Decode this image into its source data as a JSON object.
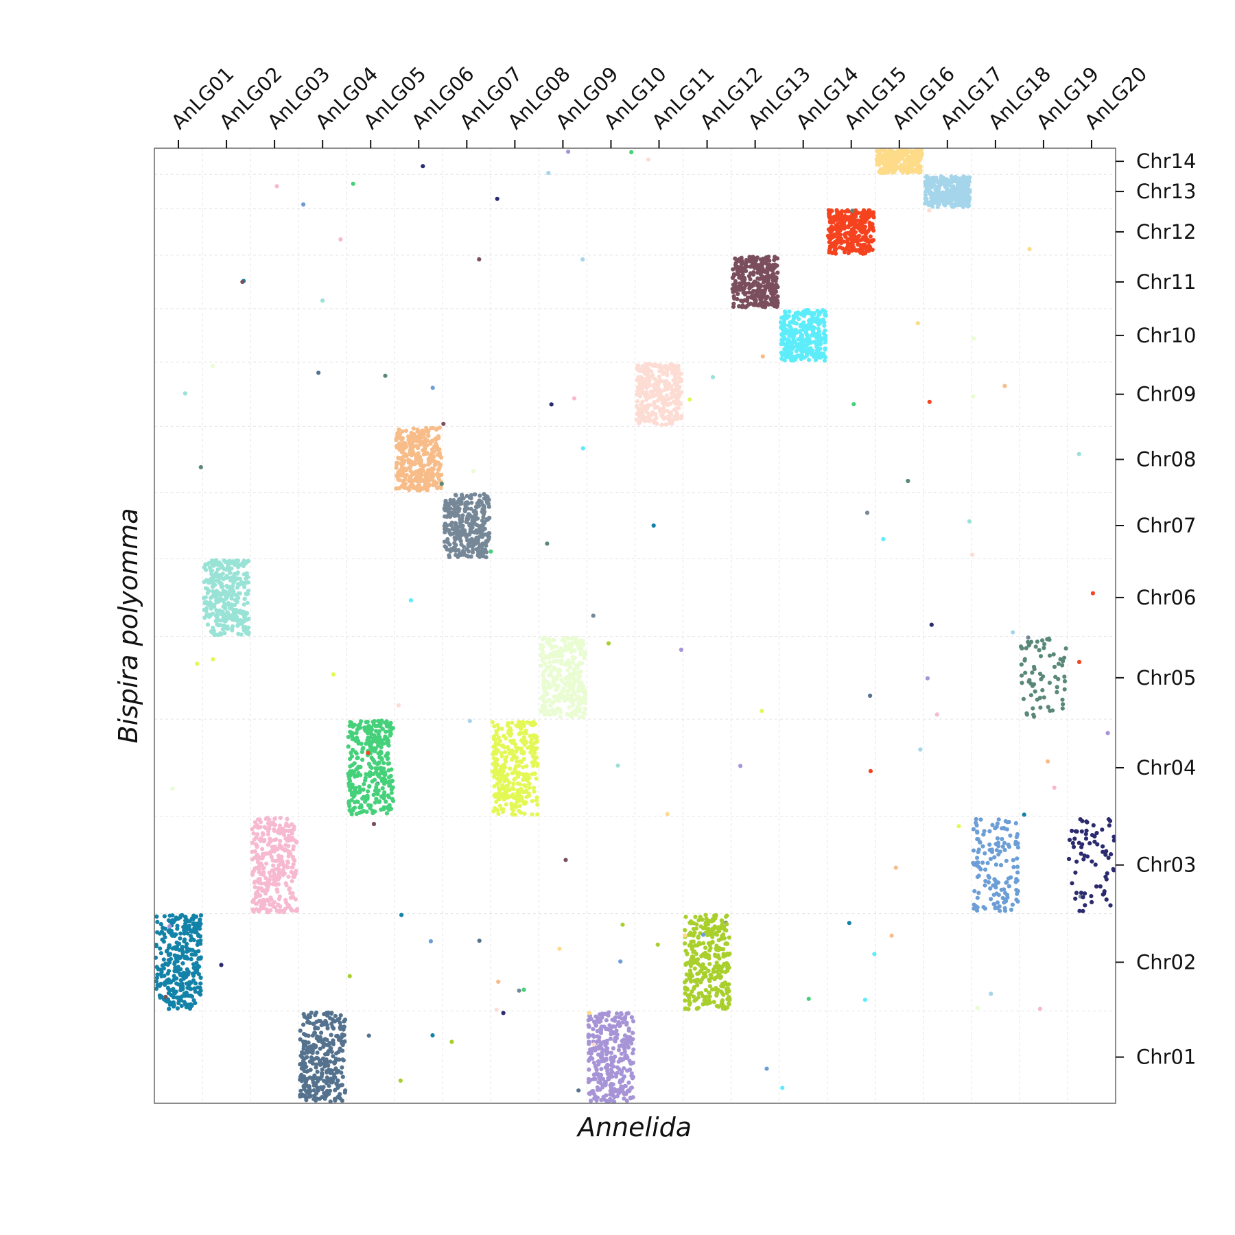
{
  "chart_data": {
    "type": "scatter",
    "title": "",
    "xlabel": "Annelida",
    "ylabel": "Bispira polyomma",
    "x_categories": [
      "AnLG01",
      "AnLG02",
      "AnLG03",
      "AnLG04",
      "AnLG05",
      "AnLG06",
      "AnLG07",
      "AnLG08",
      "AnLG09",
      "AnLG10",
      "AnLG11",
      "AnLG12",
      "AnLG13",
      "AnLG14",
      "AnLG15",
      "AnLG16",
      "AnLG17",
      "AnLG18",
      "AnLG19",
      "AnLG20"
    ],
    "y_categories": [
      "Chr01",
      "Chr02",
      "Chr03",
      "Chr04",
      "Chr05",
      "Chr06",
      "Chr07",
      "Chr08",
      "Chr09",
      "Chr10",
      "Chr11",
      "Chr12",
      "Chr13",
      "Chr14"
    ],
    "x_axis_position": "top",
    "y_axis_position": "right",
    "grid": true,
    "legend": "none",
    "blocks": [
      {
        "x": "AnLG01",
        "y": "Chr02",
        "color": "#1282a8",
        "density": "high"
      },
      {
        "x": "AnLG02",
        "y": "Chr06",
        "color": "#99e2d6",
        "density": "high"
      },
      {
        "x": "AnLG03",
        "y": "Chr03",
        "color": "#f7b9d0",
        "density": "high"
      },
      {
        "x": "AnLG04",
        "y": "Chr01",
        "color": "#54728e",
        "density": "high"
      },
      {
        "x": "AnLG05",
        "y": "Chr04",
        "color": "#45d07a",
        "density": "high"
      },
      {
        "x": "AnLG06",
        "y": "Chr08",
        "color": "#f7bc88",
        "density": "high"
      },
      {
        "x": "AnLG07",
        "y": "Chr07",
        "color": "#768898",
        "density": "high"
      },
      {
        "x": "AnLG08",
        "y": "Chr04",
        "color": "#e4f855",
        "density": "high"
      },
      {
        "x": "AnLG09",
        "y": "Chr05",
        "color": "#e9fcd2",
        "density": "high"
      },
      {
        "x": "AnLG10",
        "y": "Chr01",
        "color": "#a694d6",
        "density": "high"
      },
      {
        "x": "AnLG11",
        "y": "Chr09",
        "color": "#fddcd4",
        "density": "high"
      },
      {
        "x": "AnLG12",
        "y": "Chr02",
        "color": "#a8cf2b",
        "density": "high"
      },
      {
        "x": "AnLG13",
        "y": "Chr11",
        "color": "#7b4e5e",
        "density": "high"
      },
      {
        "x": "AnLG14",
        "y": "Chr10",
        "color": "#5cecfa",
        "density": "high"
      },
      {
        "x": "AnLG15",
        "y": "Chr12",
        "color": "#f5431f",
        "density": "high"
      },
      {
        "x": "AnLG16",
        "y": "Chr14",
        "color": "#fddb88",
        "density": "high"
      },
      {
        "x": "AnLG17",
        "y": "Chr13",
        "color": "#a5d5ea",
        "density": "high"
      },
      {
        "x": "AnLG18",
        "y": "Chr03",
        "color": "#6c9ed6",
        "density": "medium"
      },
      {
        "x": "AnLG19",
        "y": "Chr05",
        "color": "#5a8878",
        "density": "low"
      },
      {
        "x": "AnLG20",
        "y": "Chr03",
        "color": "#2b2a6e",
        "density": "low"
      }
    ]
  }
}
